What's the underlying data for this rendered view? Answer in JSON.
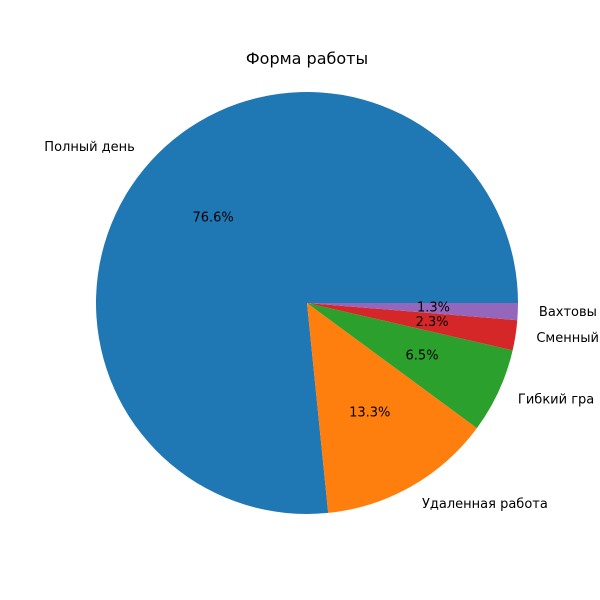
{
  "chart_data": {
    "type": "pie",
    "title": "Форма работы",
    "labels": [
      "Полный день",
      "Удаленная работа",
      "Гибкий гра",
      "Сменный",
      "Вахтовы"
    ],
    "values": [
      76.6,
      13.3,
      6.5,
      2.3,
      1.3
    ],
    "value_labels": [
      "76.6%",
      "13.3%",
      "6.5%",
      "2.3%",
      "1.3%"
    ],
    "colors": [
      "#1f77b4",
      "#ff7f0e",
      "#2ca02c",
      "#d62728",
      "#9467bd"
    ],
    "start_angle_deg": 0,
    "direction": "counterclockwise"
  }
}
